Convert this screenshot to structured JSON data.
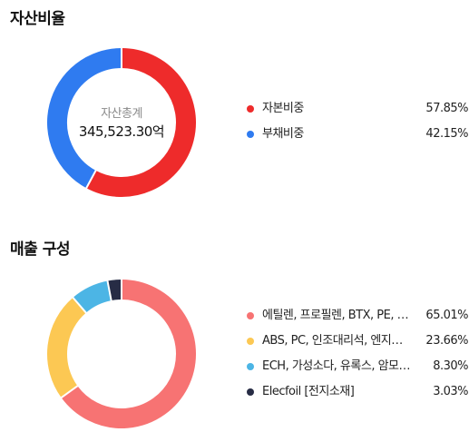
{
  "sections": {
    "assets": {
      "title": "자산비율",
      "center_caption": "자산총계",
      "center_value": "345,523.30억"
    },
    "sales": {
      "title": "매출 구성"
    }
  },
  "chart_data": [
    {
      "type": "pie",
      "variant": "donut",
      "title": "자산비율",
      "center_text": [
        "자산총계",
        "345,523.30억"
      ],
      "legend_position": "right",
      "slices": [
        {
          "label": "자본비중",
          "value": 57.85,
          "display": "57.85%",
          "color": "#ee2b2b"
        },
        {
          "label": "부채비중",
          "value": 42.15,
          "display": "42.15%",
          "color": "#2f7bf0"
        }
      ]
    },
    {
      "type": "pie",
      "variant": "donut",
      "title": "매출 구성",
      "legend_position": "right",
      "slices": [
        {
          "label": "에틸렌, 프로필렌, BTX, PE, …",
          "value": 65.01,
          "display": "65.01%",
          "color": "#f77373"
        },
        {
          "label": "ABS, PC, 인조대리석, 엔지…",
          "value": 23.66,
          "display": "23.66%",
          "color": "#fcc853"
        },
        {
          "label": "ECH, 가성소다, 유록스, 암모…",
          "value": 8.3,
          "display": "8.30%",
          "color": "#4cb5e5"
        },
        {
          "label": "Elecfoil [전지소재]",
          "value": 3.03,
          "display": "3.03%",
          "color": "#272c45"
        }
      ]
    }
  ]
}
